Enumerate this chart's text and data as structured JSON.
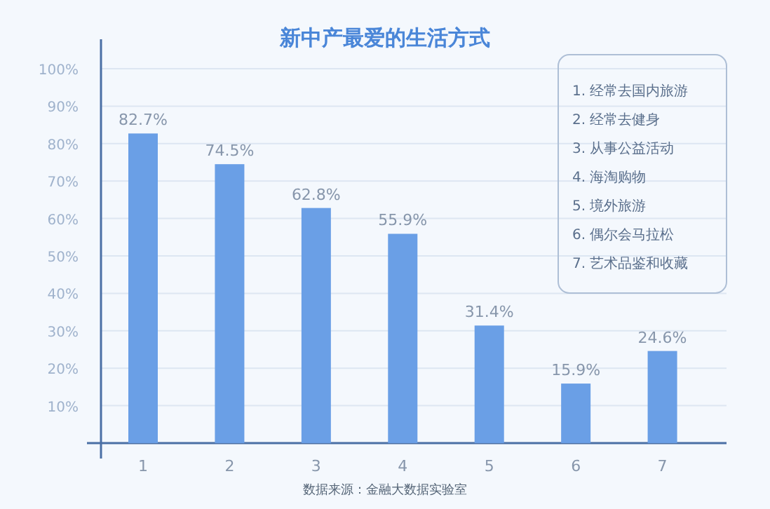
{
  "chart_data": {
    "type": "bar",
    "title": "新中产最爱的生活方式",
    "categories": [
      "1",
      "2",
      "3",
      "4",
      "5",
      "6",
      "7"
    ],
    "values": [
      82.7,
      74.5,
      62.8,
      55.9,
      31.4,
      15.9,
      24.6
    ],
    "value_labels": [
      "82.7%",
      "74.5%",
      "62.8%",
      "55.9%",
      "31.4%",
      "15.9%",
      "24.6%"
    ],
    "color": "#6a9fe6",
    "ylim": [
      0,
      100
    ],
    "yticks": [
      {
        "value": 10,
        "label": "10%"
      },
      {
        "value": 20,
        "label": "20%"
      },
      {
        "value": 30,
        "label": "30%"
      },
      {
        "value": 40,
        "label": "40%"
      },
      {
        "value": 50,
        "label": "50%"
      },
      {
        "value": 60,
        "label": "60%"
      },
      {
        "value": 70,
        "label": "70%"
      },
      {
        "value": 80,
        "label": "80%"
      },
      {
        "value": 90,
        "label": "90%"
      },
      {
        "value": 100,
        "label": "100%"
      }
    ],
    "grid": "y",
    "annotations": [
      "1. 经常去国内旅游",
      "2. 经常去健身",
      "3. 从事公益活动",
      "4. 海淘购物",
      "5. 境外旅游",
      "6. 偶尔会马拉松",
      "7. 艺术品鉴和收藏",
      "数据来源：金融大数据实验室"
    ]
  }
}
